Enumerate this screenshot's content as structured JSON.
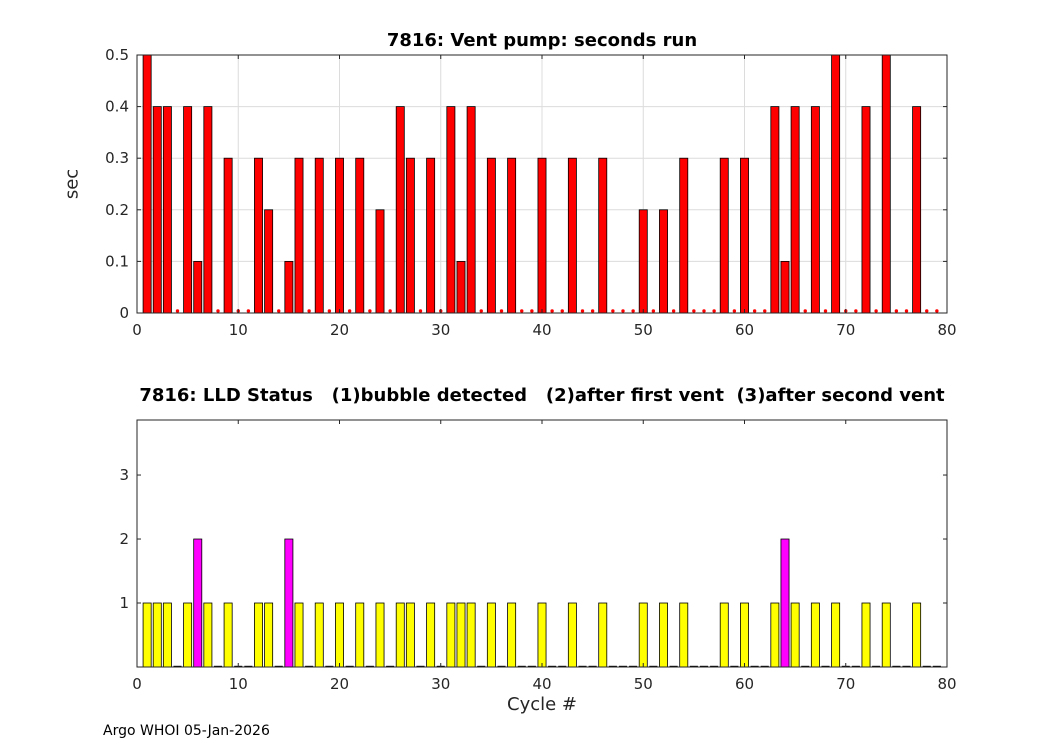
{
  "figure": {
    "background_color": "#ffffff",
    "grid_color": "#dcdcdc",
    "axis_color": "#262626",
    "tick_label_color": "#262626"
  },
  "footer": {
    "text": "Argo WHOI 05-Jan-2026"
  },
  "chart_data": [
    {
      "type": "bar",
      "title": "7816: Vent pump: seconds run",
      "ylabel": "sec",
      "xlabel": "",
      "xlim": [
        0,
        80
      ],
      "ylim": [
        0,
        0.5
      ],
      "xticks": [
        0,
        10,
        20,
        30,
        40,
        50,
        60,
        70,
        80
      ],
      "yticks": [
        0,
        0.1,
        0.2,
        0.3,
        0.4,
        0.5
      ],
      "grid": true,
      "bar_color": "#ff0000",
      "bar_edge_color": "#000000",
      "zero_marker_color": "#ff0000",
      "x": [
        1,
        2,
        3,
        4,
        5,
        6,
        7,
        8,
        9,
        10,
        11,
        12,
        13,
        14,
        15,
        16,
        17,
        18,
        19,
        20,
        21,
        22,
        23,
        24,
        25,
        26,
        27,
        28,
        29,
        30,
        31,
        32,
        33,
        34,
        35,
        36,
        37,
        38,
        39,
        40,
        41,
        42,
        43,
        44,
        45,
        46,
        47,
        48,
        49,
        50,
        51,
        52,
        53,
        54,
        55,
        56,
        57,
        58,
        59,
        60,
        61,
        62,
        63,
        64,
        65,
        66,
        67,
        68,
        69,
        70,
        71,
        72,
        73,
        74,
        75,
        76,
        77,
        78,
        79
      ],
      "values": [
        0.5,
        0.4,
        0.4,
        0,
        0.4,
        0.1,
        0.4,
        0,
        0.3,
        0,
        0,
        0.3,
        0.2,
        0,
        0.1,
        0.3,
        0,
        0.3,
        0,
        0.3,
        0,
        0.3,
        0,
        0.2,
        0,
        0.4,
        0.3,
        0,
        0.3,
        0,
        0.4,
        0.1,
        0.4,
        0,
        0.3,
        0,
        0.3,
        0,
        0,
        0.3,
        0,
        0,
        0.3,
        0,
        0,
        0.3,
        0,
        0,
        0,
        0.2,
        0,
        0.2,
        0,
        0.3,
        0,
        0,
        0,
        0.3,
        0,
        0.3,
        0,
        0,
        0.4,
        0.1,
        0.4,
        0,
        0.4,
        0,
        0.5,
        0,
        0,
        0.4,
        0,
        0.5,
        0,
        0,
        0.4,
        0,
        0
      ]
    },
    {
      "type": "bar",
      "title": "7816: LLD Status   (1)bubble detected   (2)after first vent  (3)after second vent",
      "ylabel": "",
      "xlabel": "Cycle #",
      "xlim": [
        0,
        80
      ],
      "ylim": [
        0,
        3.86
      ],
      "xticks": [
        0,
        10,
        20,
        30,
        40,
        50,
        60,
        70,
        80
      ],
      "yticks": [
        1,
        2,
        3
      ],
      "grid": false,
      "bar_edge_color": "#000000",
      "status_colors": {
        "1": "#ffff00",
        "2": "#ff00ff"
      },
      "x": [
        1,
        2,
        3,
        4,
        5,
        6,
        7,
        8,
        9,
        10,
        11,
        12,
        13,
        14,
        15,
        16,
        17,
        18,
        19,
        20,
        21,
        22,
        23,
        24,
        25,
        26,
        27,
        28,
        29,
        30,
        31,
        32,
        33,
        34,
        35,
        36,
        37,
        38,
        39,
        40,
        41,
        42,
        43,
        44,
        45,
        46,
        47,
        48,
        49,
        50,
        51,
        52,
        53,
        54,
        55,
        56,
        57,
        58,
        59,
        60,
        61,
        62,
        63,
        64,
        65,
        66,
        67,
        68,
        69,
        70,
        71,
        72,
        73,
        74,
        75,
        76,
        77,
        78,
        79
      ],
      "status": [
        1,
        1,
        1,
        0,
        1,
        2,
        1,
        0,
        1,
        0,
        0,
        1,
        1,
        0,
        2,
        1,
        0,
        1,
        0,
        1,
        0,
        1,
        0,
        1,
        0,
        1,
        1,
        0,
        1,
        0,
        1,
        1,
        1,
        0,
        1,
        0,
        1,
        0,
        0,
        1,
        0,
        0,
        1,
        0,
        0,
        1,
        0,
        0,
        0,
        1,
        0,
        1,
        0,
        1,
        0,
        0,
        0,
        1,
        0,
        1,
        0,
        0,
        1,
        2,
        1,
        0,
        1,
        0,
        1,
        0,
        0,
        1,
        0,
        1,
        0,
        0,
        1,
        0,
        0
      ]
    }
  ]
}
